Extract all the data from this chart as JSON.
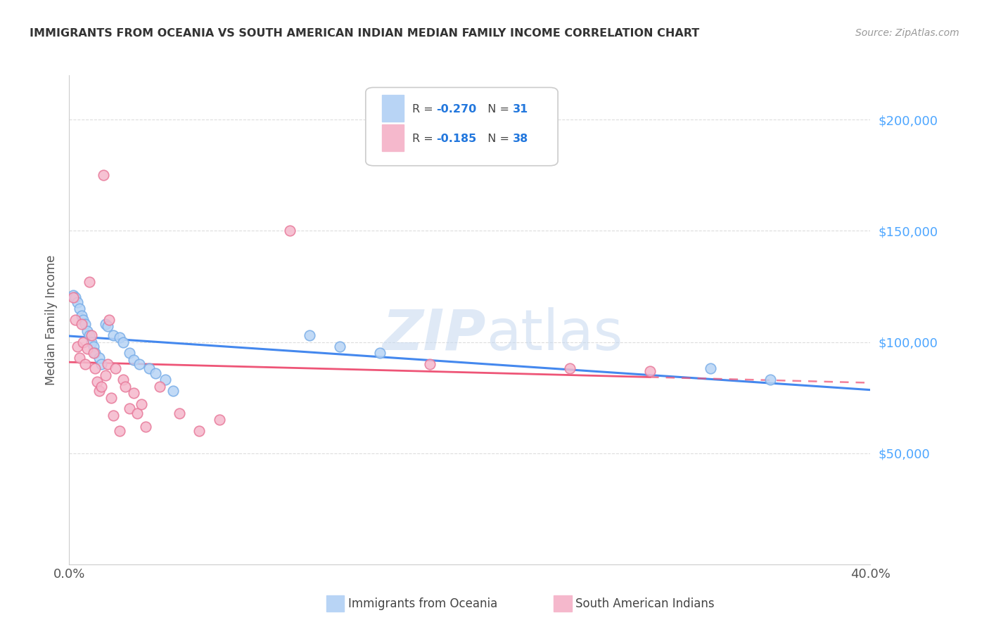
{
  "title": "IMMIGRANTS FROM OCEANIA VS SOUTH AMERICAN INDIAN MEDIAN FAMILY INCOME CORRELATION CHART",
  "source": "Source: ZipAtlas.com",
  "ylabel": "Median Family Income",
  "y_tick_labels": [
    "$50,000",
    "$100,000",
    "$150,000",
    "$200,000"
  ],
  "y_tick_values": [
    50000,
    100000,
    150000,
    200000
  ],
  "y_right_color": "#4da6ff",
  "legend_r1": "-0.270",
  "legend_n1": "31",
  "legend_r2": "-0.185",
  "legend_n2": "38",
  "oceania_color": "#b8d4f5",
  "oceania_edge": "#7aaee8",
  "sa_indian_color": "#f5b8cc",
  "sa_indian_edge": "#e87a9a",
  "line_oceania_color": "#4488ee",
  "line_sa_color": "#ee5577",
  "xlim": [
    0.0,
    0.4
  ],
  "ylim": [
    0,
    220000
  ],
  "x_ticks": [
    0.0,
    0.05,
    0.1,
    0.15,
    0.2,
    0.25,
    0.3,
    0.35,
    0.4
  ],
  "oceania_x": [
    0.002,
    0.003,
    0.004,
    0.005,
    0.006,
    0.007,
    0.008,
    0.009,
    0.01,
    0.011,
    0.012,
    0.013,
    0.015,
    0.016,
    0.018,
    0.019,
    0.022,
    0.025,
    0.027,
    0.03,
    0.032,
    0.035,
    0.04,
    0.043,
    0.048,
    0.052,
    0.12,
    0.135,
    0.155,
    0.32,
    0.35
  ],
  "oceania_y": [
    121000,
    120000,
    118000,
    115000,
    112000,
    110000,
    108000,
    105000,
    103000,
    100000,
    98000,
    95000,
    93000,
    90000,
    108000,
    107000,
    103000,
    102000,
    100000,
    95000,
    92000,
    90000,
    88000,
    86000,
    83000,
    78000,
    103000,
    98000,
    95000,
    88000,
    83000
  ],
  "sa_indian_x": [
    0.002,
    0.003,
    0.004,
    0.005,
    0.006,
    0.007,
    0.008,
    0.009,
    0.01,
    0.011,
    0.012,
    0.013,
    0.014,
    0.015,
    0.016,
    0.017,
    0.018,
    0.019,
    0.02,
    0.021,
    0.022,
    0.023,
    0.025,
    0.027,
    0.028,
    0.03,
    0.032,
    0.034,
    0.036,
    0.038,
    0.045,
    0.055,
    0.065,
    0.075,
    0.11,
    0.18,
    0.25,
    0.29
  ],
  "sa_indian_y": [
    120000,
    110000,
    98000,
    93000,
    108000,
    100000,
    90000,
    97000,
    127000,
    103000,
    95000,
    88000,
    82000,
    78000,
    80000,
    175000,
    85000,
    90000,
    110000,
    75000,
    67000,
    88000,
    60000,
    83000,
    80000,
    70000,
    77000,
    68000,
    72000,
    62000,
    80000,
    68000,
    60000,
    65000,
    150000,
    90000,
    88000,
    87000
  ]
}
